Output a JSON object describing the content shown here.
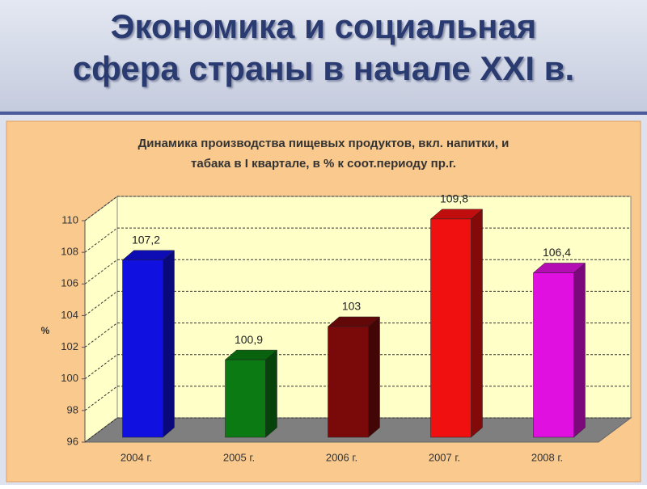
{
  "header": {
    "title_lines": [
      "Экономика и социальная",
      "сфера страны в начале XXI в."
    ]
  },
  "chart_data": {
    "type": "bar3d",
    "title_lines": [
      "Динамика производства пищевых продуктов, вкл. напитки, и",
      "табака в I квартале, в % к соот.периоду пр.г."
    ],
    "y_label": "%",
    "categories": [
      "2004 г.",
      "2005 г.",
      "2006 г.",
      "2007 г.",
      "2008 г."
    ],
    "values": [
      107.2,
      100.9,
      103,
      109.8,
      106.4
    ],
    "value_labels": [
      "107,2",
      "100,9",
      "103",
      "109,8",
      "106,4"
    ],
    "colors": [
      "#1010e0",
      "#0b7a12",
      "#7a0a0a",
      "#f01010",
      "#e010e0"
    ],
    "ylim": [
      96,
      110
    ],
    "yticks": [
      96,
      98,
      100,
      102,
      104,
      106,
      108,
      110
    ],
    "grid": true
  }
}
